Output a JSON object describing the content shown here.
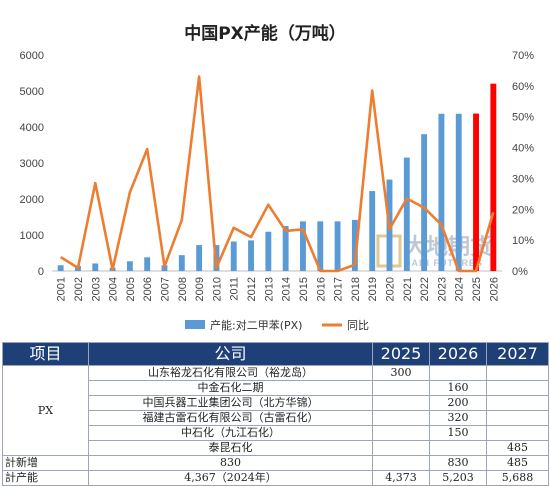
{
  "chart_data": {
    "type": "bar+line",
    "title": "中国PX产能（万吨）",
    "categories": [
      "2001",
      "2002",
      "2003",
      "2004",
      "2005",
      "2006",
      "2007",
      "2008",
      "2009",
      "2010",
      "2011",
      "2012",
      "2013",
      "2014",
      "2015",
      "2016",
      "2017",
      "2018",
      "2019",
      "2020",
      "2021",
      "2022",
      "2023",
      "2024",
      "2025",
      "2026"
    ],
    "series": [
      {
        "name": "产能:对二甲苯(PX)",
        "type": "bar",
        "axis": "left",
        "color": "#5b9bd5",
        "highlight_color": "#ff0000",
        "highlight_categories": [
          "2025",
          "2026"
        ],
        "values": [
          160,
          140,
          210,
          90,
          270,
          380,
          160,
          440,
          720,
          720,
          820,
          850,
          1090,
          1250,
          1380,
          1380,
          1380,
          1420,
          2220,
          2540,
          3150,
          3800,
          4367,
          4367,
          4373,
          5203
        ]
      },
      {
        "name": "同比",
        "type": "line",
        "axis": "right",
        "color": "#ed7d31",
        "values": [
          0.045,
          0.01,
          0.285,
          0.005,
          0.255,
          0.395,
          0.015,
          0.165,
          0.63,
          0.01,
          0.14,
          0.11,
          0.215,
          0.13,
          0.135,
          0.0,
          0.0,
          0.02,
          0.585,
          0.135,
          0.235,
          0.205,
          0.15,
          0.0,
          0.0,
          0.19
        ]
      }
    ],
    "y_left": {
      "min": 0,
      "max": 6000,
      "ticks": [
        "0",
        "1000",
        "2000",
        "3000",
        "4000",
        "5000",
        "6000"
      ]
    },
    "y_right": {
      "min": 0,
      "max": 0.7,
      "ticks": [
        "0%",
        "10%",
        "20%",
        "30%",
        "40%",
        "50%",
        "60%",
        "70%"
      ]
    },
    "legend_position": "bottom",
    "grid": false
  },
  "watermark": {
    "brand_cn": "大地期货",
    "brand_en": "DADI FUTURES"
  },
  "table": {
    "headers": [
      "项目",
      "公司",
      "2025",
      "2026",
      "2027"
    ],
    "category": "PX",
    "rows": [
      {
        "company": "山东裕龙石化有限公司（裕龙岛）",
        "y2025": "300",
        "y2026": "",
        "y2027": ""
      },
      {
        "company": "中金石化二期",
        "y2025": "",
        "y2026": "160",
        "y2027": ""
      },
      {
        "company": "中国兵器工业集团公司（北方华锦）",
        "y2025": "",
        "y2026": "200",
        "y2027": ""
      },
      {
        "company": "福建古雷石化有限公司（古雷石化）",
        "y2025": "",
        "y2026": "320",
        "y2027": ""
      },
      {
        "company": "中石化（九江石化）",
        "y2025": "",
        "y2026": "150",
        "y2027": ""
      },
      {
        "company": "泰昆石化",
        "y2025": "",
        "y2026": "",
        "y2027": "485"
      }
    ],
    "totals": [
      {
        "label": "計新增",
        "company": "830",
        "y2025": "",
        "y2026": "830",
        "y2027": "485"
      },
      {
        "label": "計产能",
        "company": "4,367（2024年）",
        "y2025": "4,373",
        "y2026": "5,203",
        "y2027": "5,688"
      }
    ]
  }
}
